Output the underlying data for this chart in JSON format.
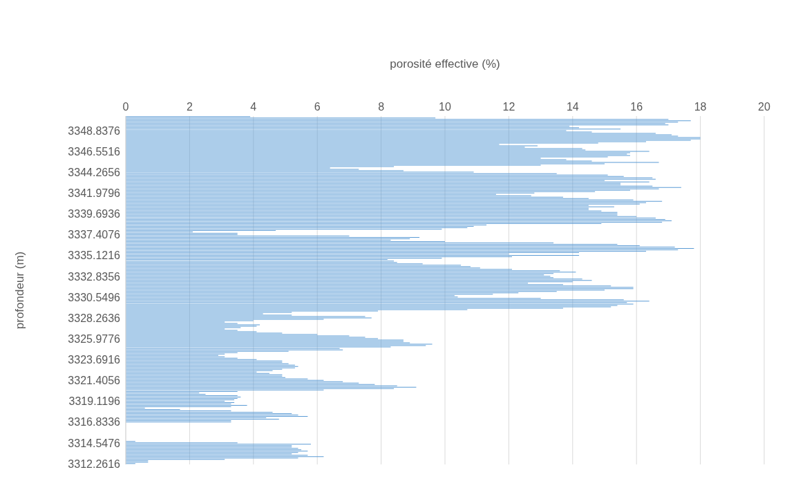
{
  "chart_data": {
    "type": "bar",
    "orientation": "horizontal",
    "xlabel": "porosité effective (%)",
    "ylabel": "profondeur (m)",
    "color": "#5b9bd5",
    "grid": "x",
    "xlim": [
      0,
      20
    ],
    "xticks": [
      0,
      2,
      4,
      6,
      8,
      10,
      12,
      14,
      16,
      18,
      20
    ],
    "categories": [
      null,
      null,
      null,
      null,
      null,
      null,
      null,
      null,
      null,
      null,
      "3348.8376",
      null,
      null,
      null,
      null,
      null,
      null,
      null,
      null,
      null,
      null,
      null,
      null,
      null,
      null,
      "3346.5516",
      null,
      null,
      null,
      null,
      null,
      null,
      null,
      null,
      null,
      null,
      null,
      null,
      null,
      null,
      "3344.2656",
      null,
      null,
      null,
      null,
      null,
      null,
      null,
      null,
      null,
      null,
      null,
      null,
      null,
      null,
      "3341.9796",
      null,
      null,
      null,
      null,
      null,
      null,
      null,
      null,
      null,
      null,
      null,
      null,
      null,
      null,
      "3339.6936",
      null,
      null,
      null,
      null,
      null,
      null,
      null,
      null,
      null,
      null,
      null,
      null,
      null,
      null,
      "3337.4076",
      null,
      null,
      null,
      null,
      null,
      null,
      null,
      null,
      null,
      null,
      null,
      null,
      null,
      null,
      "3335.1216",
      null,
      null,
      null,
      null,
      null,
      null,
      null,
      null,
      null,
      null,
      null,
      null,
      null,
      null,
      "3332.8356",
      null,
      null,
      null,
      null,
      null,
      null,
      null,
      null,
      null,
      null,
      null,
      null,
      null,
      null,
      "3330.5496",
      null,
      null,
      null,
      null,
      null,
      null,
      null,
      null,
      null,
      null,
      null,
      null,
      null,
      null,
      "3328.2636",
      null,
      null,
      null,
      null,
      null,
      null,
      null,
      null,
      null,
      null,
      null,
      null,
      null,
      null,
      "3325.9776",
      null,
      null,
      null,
      null,
      null,
      null,
      null,
      null,
      null,
      null,
      null,
      null,
      null,
      null,
      "3323.6916",
      null,
      null,
      null,
      null,
      null,
      null,
      null,
      null,
      null,
      null,
      null,
      null,
      null,
      null,
      "3321.4056",
      null,
      null,
      null,
      null,
      null,
      null,
      null,
      null,
      null,
      null,
      null,
      null,
      null,
      null,
      "3319.1196",
      null,
      null,
      null,
      null,
      null,
      null,
      null,
      null,
      null,
      null,
      null,
      null,
      null,
      null,
      "3316.8336",
      null,
      null,
      null,
      null,
      null,
      null,
      null,
      null,
      null,
      null,
      null,
      null,
      null,
      null,
      "3314.5476",
      null,
      null,
      null,
      null,
      null,
      null,
      null,
      null,
      null,
      null,
      null,
      null,
      null,
      null,
      "3312.2616"
    ],
    "values": [
      3.9,
      9.7,
      17.0,
      17.7,
      17.3,
      16.9,
      17.0,
      13.9,
      14.2,
      15.5,
      13.8,
      14.6,
      16.6,
      17.1,
      17.3,
      18.0,
      18.0,
      17.7,
      16.3,
      14.8,
      11.7,
      12.9,
      12.5,
      14.3,
      14.4,
      16.4,
      15.8,
      15.7,
      15.8,
      15.1,
      13.0,
      13.8,
      14.6,
      16.7,
      15.0,
      13.0,
      8.4,
      6.4,
      7.3,
      8.7,
      10.9,
      13.5,
      15.1,
      15.6,
      16.5,
      16.6,
      15.0,
      16.4,
      15.5,
      15.5,
      16.5,
      17.4,
      16.7,
      15.8,
      14.7,
      12.8,
      11.6,
      12.7,
      13.7,
      14.5,
      15.9,
      16.8,
      16.3,
      16.1,
      14.5,
      15.3,
      14.5,
      14.5,
      14.9,
      15.4,
      15.4,
      15.4,
      16.0,
      16.6,
      16.9,
      17.1,
      16.8,
      14.9,
      11.3,
      10.9,
      10.7,
      9.9,
      4.7,
      2.1,
      3.5,
      3.5,
      7.0,
      9.2,
      8.9,
      8.3,
      10.0,
      13.4,
      15.4,
      16.1,
      17.2,
      17.8,
      17.3,
      16.3,
      14.2,
      12.0,
      14.2,
      12.1,
      9.9,
      8.2,
      8.4,
      8.5,
      9.3,
      10.5,
      10.8,
      11.1,
      12.1,
      13.6,
      14.1,
      13.4,
      13.1,
      13.3,
      13.4,
      14.3,
      14.6,
      14.0,
      12.6,
      13.7,
      15.2,
      15.9,
      15.9,
      15.0,
      13.5,
      12.3,
      11.5,
      10.3,
      10.4,
      13.0,
      15.6,
      16.4,
      15.7,
      15.9,
      15.4,
      15.2,
      13.7,
      10.7,
      7.9,
      5.2,
      4.3,
      5.2,
      7.5,
      7.7,
      6.2,
      4.0,
      3.1,
      3.5,
      4.2,
      4.1,
      3.6,
      3.1,
      3.5,
      4.1,
      4.9,
      6.0,
      7.0,
      7.5,
      7.9,
      8.7,
      8.7,
      8.9,
      9.6,
      9.4,
      8.3,
      6.7,
      6.8,
      5.1,
      3.5,
      3.1,
      2.9,
      3.1,
      3.5,
      4.1,
      4.9,
      4.9,
      5.1,
      5.3,
      5.4,
      5.3,
      4.9,
      4.6,
      4.1,
      4.5,
      4.9,
      4.9,
      5.0,
      5.7,
      6.2,
      6.8,
      7.3,
      7.8,
      8.5,
      9.1,
      8.4,
      6.2,
      3.5,
      2.3,
      2.5,
      3.5,
      3.6,
      3.5,
      3.4,
      3.1,
      3.4,
      3.3,
      3.8,
      3.3,
      0.6,
      1.7,
      3.3,
      4.6,
      5.2,
      5.4,
      5.7,
      4.4,
      4.8,
      3.3,
      3.3,
      null,
      null,
      null,
      null,
      null,
      null,
      null,
      null,
      null,
      null,
      null,
      null,
      null,
      0.3,
      3.5,
      5.8,
      5.2,
      5.2,
      5.4,
      5.5,
      5.7,
      5.4,
      5.2,
      5.7,
      6.2,
      5.4,
      3.1,
      0.7,
      0.7,
      0.3
    ]
  }
}
